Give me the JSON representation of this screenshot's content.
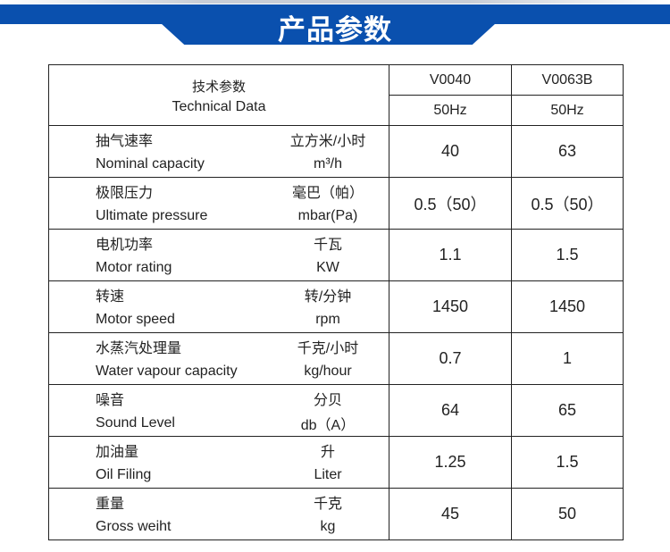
{
  "banner": {
    "title": "产品参数",
    "color": "#0a50ae"
  },
  "header": {
    "label_zh": "技术参数",
    "label_en": "Technical Data",
    "models": [
      "V0040",
      "V0063B"
    ],
    "frequencies": [
      "50Hz",
      "50Hz"
    ]
  },
  "rows": [
    {
      "zh": "抽气速率",
      "en": "Nominal capacity",
      "unit_zh": "立方米/小时",
      "unit_en": "m³/h",
      "v1": "40",
      "v2": "63"
    },
    {
      "zh": "极限压力",
      "en": "Ultimate pressure",
      "unit_zh": "毫巴（帕）",
      "unit_en": "mbar(Pa)",
      "v1": "0.5（50）",
      "v2": "0.5（50）"
    },
    {
      "zh": "电机功率",
      "en": "Motor rating",
      "unit_zh": "千瓦",
      "unit_en": "KW",
      "v1": "1.1",
      "v2": "1.5"
    },
    {
      "zh": "转速",
      "en": "Motor speed",
      "unit_zh": "转/分钟",
      "unit_en": "rpm",
      "v1": "1450",
      "v2": "1450"
    },
    {
      "zh": "水蒸汽处理量",
      "en": "Water vapour capacity",
      "unit_zh": "千克/小时",
      "unit_en": "kg/hour",
      "v1": "0.7",
      "v2": "1"
    },
    {
      "zh": "噪音",
      "en": "Sound Level",
      "unit_zh": "分贝",
      "unit_en": "db（A）",
      "v1": "64",
      "v2": "65"
    },
    {
      "zh": "加油量",
      "en": "Oil Filing",
      "unit_zh": "升",
      "unit_en": "Liter",
      "v1": "1.25",
      "v2": "1.5"
    },
    {
      "zh": "重量",
      "en": "Gross weiht",
      "unit_zh": "千克",
      "unit_en": "kg",
      "v1": "45",
      "v2": "50"
    }
  ]
}
